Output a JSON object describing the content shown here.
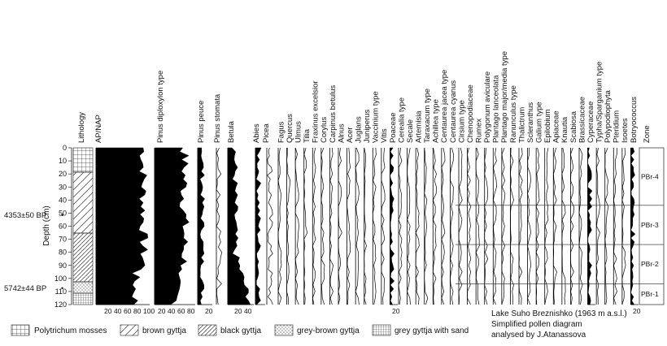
{
  "headers": {
    "lithology": "Lithology",
    "apnap": "AP/NAP",
    "pinus_diploxylon": "Pinus diploxylon type",
    "pinus_peuce": "Pinus peuce",
    "pinus_stomata": "Pinus stomata",
    "betula": "Betula",
    "abies": "Abies",
    "picea": "Picea",
    "taxa": [
      "Fagus",
      "Quercus",
      "Ulmus",
      "Tilia",
      "Fraxinus excelsior",
      "Corylus",
      "Carpinus betulus",
      "Alnus",
      "Acer",
      "Juglans",
      "Juniperus",
      "Vaccinium type",
      "Vitis",
      "Poaceae",
      "Cerealia type",
      "Secale",
      "Artemisia",
      "Taraxacum type",
      "Achillea type",
      "Centaurea jacea type",
      "Centaurea cyanus",
      "Cirsium type",
      "Chenopodiaceae",
      "Rumex",
      "Polygonum aviculare",
      "Plantago lanceolata",
      "Plantago major/media type",
      "Ranunculus type",
      "Thalictrum",
      "Scleranthus",
      "Galium type",
      "Epilobium",
      "Apiaceae",
      "Knautia",
      "Scabiosa",
      "Brassicaceae",
      "Cyperaceae",
      "Typha/Sparganium type",
      "Polypodiophyta",
      "Pteridium",
      "Isoetes",
      "Botryococcus"
    ],
    "zone": "Zone"
  },
  "depth_axis": {
    "label": "Depth (cm)",
    "ticks": [
      "0",
      "10",
      "20",
      "30",
      "40",
      "50",
      "60",
      "70",
      "80",
      "90",
      "100",
      "110",
      "120"
    ]
  },
  "dates": [
    {
      "label": "4353±50 BP",
      "depth_cm": 47
    },
    {
      "label": "5742±44 BP",
      "depth_cm": 101
    }
  ],
  "zones": [
    {
      "label": "PBr-4",
      "top_cm": 0,
      "bottom_cm": 44
    },
    {
      "label": "PBr-3",
      "top_cm": 44,
      "bottom_cm": 74
    },
    {
      "label": "PBr-2",
      "top_cm": 74,
      "bottom_cm": 104
    },
    {
      "label": "PBr-1",
      "top_cm": 104,
      "bottom_cm": 120
    }
  ],
  "bottom_ticks": {
    "apnap": [
      "20",
      "40",
      "60",
      "80",
      "100"
    ],
    "pinus": [
      "20",
      "40",
      "60",
      "80"
    ],
    "peuce": "20",
    "betula": [
      "20",
      "40"
    ],
    "poaceae": "20",
    "botryococcus": "20"
  },
  "caption": {
    "line1": "Lake Suho Breznishko (1963 m a.s.l.)",
    "line2": "Simplified pollen diagram",
    "line3": "analysed by J.Atanassova"
  },
  "legend": [
    {
      "label": "Polytrichum mosses",
      "pattern": "grid"
    },
    {
      "label": "brown gyttja",
      "pattern": "diag-wide"
    },
    {
      "label": "black gyttja",
      "pattern": "diag"
    },
    {
      "label": "grey-brown gyttja",
      "pattern": "dots"
    },
    {
      "label": "grey gyttja with sand",
      "pattern": "fine-grid"
    }
  ]
}
